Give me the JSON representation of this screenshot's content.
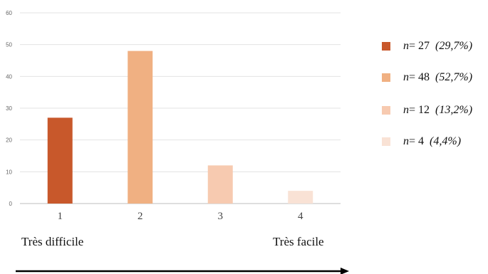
{
  "chart_data": {
    "type": "bar",
    "categories": [
      "1",
      "2",
      "3",
      "4"
    ],
    "values": [
      27,
      48,
      12,
      4
    ],
    "colors": [
      "#c8582b",
      "#f0b082",
      "#f7cab0",
      "#f9e2d5"
    ],
    "ylim": [
      0,
      60
    ],
    "yticks": [
      0,
      10,
      20,
      30,
      40,
      50,
      60
    ],
    "grid": true,
    "legend_position": "right",
    "legend": [
      {
        "n_label": "n",
        "count_text": "= 27",
        "pct_text": "(29,7%)"
      },
      {
        "n_label": "n",
        "count_text": "= 48",
        "pct_text": "(52,7%)"
      },
      {
        "n_label": "n",
        "count_text": "= 12",
        "pct_text": "(13,2%)"
      },
      {
        "n_label": "n",
        "count_text": "= 4",
        "pct_text": "(4,4%)"
      }
    ],
    "scale": {
      "low_label": "Très difficile",
      "high_label": "Très facile"
    }
  }
}
